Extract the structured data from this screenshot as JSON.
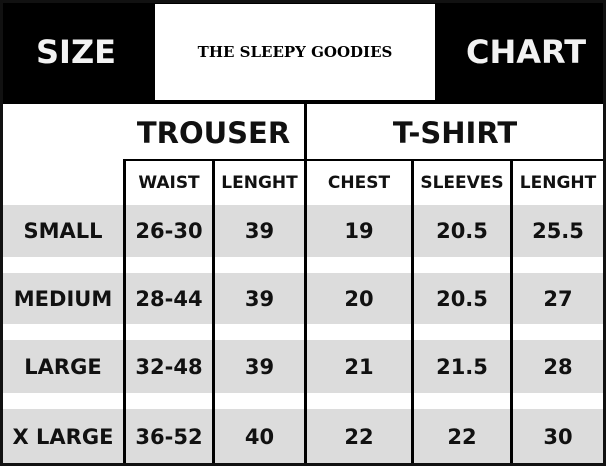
{
  "header": {
    "left": "SIZE",
    "brand": "THE SLEEPY GOODIES",
    "right": "CHART"
  },
  "groups": {
    "trouser": "TROUSER",
    "tshirt": "T-SHIRT"
  },
  "columns": [
    "WAIST",
    "LENGHT",
    "CHEST",
    "SLEEVES",
    "LENGHT"
  ],
  "rows": [
    {
      "size": "SMALL",
      "values": [
        "26-30",
        "39",
        "19",
        "20.5",
        "25.5"
      ]
    },
    {
      "size": "MEDIUM",
      "values": [
        "28-44",
        "39",
        "20",
        "20.5",
        "27"
      ]
    },
    {
      "size": "LARGE",
      "values": [
        "32-48",
        "39",
        "21",
        "21.5",
        "28"
      ]
    },
    {
      "size": "X LARGE",
      "values": [
        "36-52",
        "40",
        "22",
        "22",
        "30"
      ]
    }
  ]
}
